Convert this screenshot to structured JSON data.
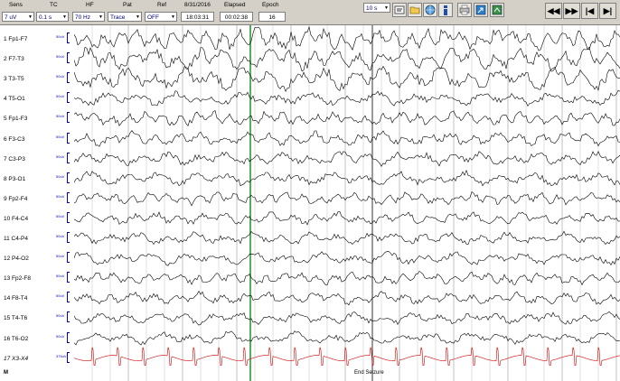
{
  "toolbar": {
    "headers": {
      "sens": "Sens",
      "tc": "TC",
      "hf": "HF",
      "pat": "Pat",
      "ref": "Ref",
      "date": "8/31/2016",
      "elapsed": "Elapsed",
      "epoch": "Epoch"
    },
    "values": {
      "sens": "7 uV",
      "tc": "0.1 s",
      "hf": "70 Hz",
      "pat": "Trace",
      "ref": "OFF",
      "clock": "18:03:31",
      "elapsed": "00:02:38",
      "epoch": "16"
    },
    "page_length": "10 s",
    "tool_icons": [
      "montage-icon",
      "folder-icon",
      "globe-icon",
      "info-icon",
      "print-icon",
      "export-icon",
      "settings-icon"
    ],
    "nav": {
      "rewind": "◀◀",
      "forward": "▶▶",
      "first": "|◀",
      "last": "▶|"
    }
  },
  "channels": [
    {
      "label": "1  Fp1-F7",
      "scale": "50uV"
    },
    {
      "label": "2  F7-T3",
      "scale": "50uV"
    },
    {
      "label": "3  T3-T5",
      "scale": "50uV"
    },
    {
      "label": "4  T5-O1",
      "scale": "50uV"
    },
    {
      "label": "5  Fp1-F3",
      "scale": "50uV"
    },
    {
      "label": "6  F3-C3",
      "scale": "50uV"
    },
    {
      "label": "7  C3-P3",
      "scale": "50uV"
    },
    {
      "label": "8  P3-O1",
      "scale": "50uV"
    },
    {
      "label": "9  Fp2-F4",
      "scale": "50uV"
    },
    {
      "label": "10  F4-C4",
      "scale": "50uV"
    },
    {
      "label": "11  C4-P4",
      "scale": "50uV"
    },
    {
      "label": "12  P4-O2",
      "scale": "50uV"
    },
    {
      "label": "13  Fp2-F8",
      "scale": "50uV"
    },
    {
      "label": "14  F8-T4",
      "scale": "50uV"
    },
    {
      "label": "15  T4-T6",
      "scale": "50uV"
    },
    {
      "label": "16  T6-O2",
      "scale": "50uV"
    },
    {
      "label": "17  X3-X4",
      "scale": "375uV"
    }
  ],
  "annotation": "End Seizure",
  "bottom_marker": "M",
  "colors": {
    "trace": "#000000",
    "ekg": "#cc0000",
    "gridline": "#999999",
    "marker": "#2e9a2e"
  }
}
